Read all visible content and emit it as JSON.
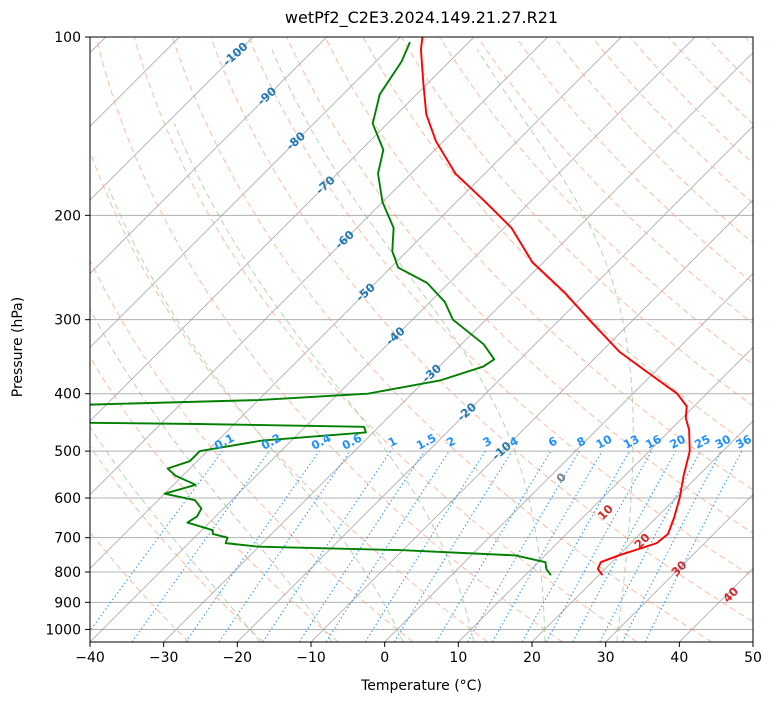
{
  "chart_data": {
    "type": "skew-t",
    "title": "wetPf2_C2E3.2024.149.21.27.R21",
    "xlabel": "Temperature (°C)",
    "ylabel": "Pressure (hPa)",
    "xlim": [
      -40,
      50
    ],
    "ylim": [
      1050,
      100
    ],
    "skew_c_per_decade": 45,
    "x_ticks": [
      -40,
      -30,
      -20,
      -10,
      0,
      10,
      20,
      30,
      40,
      50
    ],
    "x_tick_labels": [
      "−40",
      "−30",
      "−20",
      "−10",
      "0",
      "10",
      "20",
      "30",
      "40",
      "50"
    ],
    "y_ticks": [
      1000,
      900,
      800,
      700,
      600,
      500,
      400,
      300,
      200,
      100
    ],
    "y_tick_labels": [
      "1000",
      "900",
      "800",
      "700",
      "600",
      "500",
      "400",
      "300",
      "200",
      "100"
    ],
    "grid": true,
    "colors": {
      "temperature": "#ff0000",
      "dewpoint": "#008000",
      "isotherm": "#a0a0a0",
      "grid": "#b0b0b0",
      "dry_adiabat": "#ffa07a",
      "moist_adiabat": "#8fbc8f",
      "mixing_ratio": "#1e90ff",
      "dry_adiabat_label": "#1f77b4",
      "moist_adiabat_label": "#d62728",
      "zero_label": "#808080"
    },
    "series": [
      {
        "name": "Temperature",
        "unit": "°C",
        "points": [
          [
            810,
            20.5
          ],
          [
            790,
            19.0
          ],
          [
            770,
            18.5
          ],
          [
            750,
            20.0
          ],
          [
            730,
            22.0
          ],
          [
            715,
            23.5
          ],
          [
            690,
            23.8
          ],
          [
            650,
            22.5
          ],
          [
            600,
            20.5
          ],
          [
            550,
            18.0
          ],
          [
            500,
            15.5
          ],
          [
            460,
            12.5
          ],
          [
            440,
            10.5
          ],
          [
            420,
            9.0
          ],
          [
            400,
            6.0
          ],
          [
            370,
            -0.5
          ],
          [
            340,
            -7.5
          ],
          [
            300,
            -16.0
          ],
          [
            270,
            -23.0
          ],
          [
            240,
            -31.5
          ],
          [
            210,
            -39.0
          ],
          [
            190,
            -46.0
          ],
          [
            170,
            -54.0
          ],
          [
            150,
            -61.0
          ],
          [
            135,
            -66.0
          ],
          [
            120,
            -70.5
          ],
          [
            105,
            -75.5
          ],
          [
            100,
            -77.0
          ]
        ]
      },
      {
        "name": "Dewpoint",
        "unit": "°C",
        "points": [
          [
            810,
            13.5
          ],
          [
            790,
            12.0
          ],
          [
            770,
            11.0
          ],
          [
            750,
            6.0
          ],
          [
            735,
            -10.0
          ],
          [
            725,
            -30.0
          ],
          [
            715,
            -35.0
          ],
          [
            700,
            -35.5
          ],
          [
            690,
            -38.0
          ],
          [
            680,
            -38.5
          ],
          [
            660,
            -43.0
          ],
          [
            645,
            -42.5
          ],
          [
            625,
            -43.0
          ],
          [
            605,
            -45.0
          ],
          [
            590,
            -50.0
          ],
          [
            570,
            -47.0
          ],
          [
            550,
            -51.0
          ],
          [
            535,
            -53.0
          ],
          [
            520,
            -51.0
          ],
          [
            500,
            -51.0
          ],
          [
            480,
            -44.0
          ],
          [
            465,
            -31.0
          ],
          [
            455,
            -32.0
          ],
          [
            450,
            -55.0
          ],
          [
            445,
            -90.0
          ],
          [
            420,
            -80.0
          ],
          [
            410,
            -50.0
          ],
          [
            400,
            -36.0
          ],
          [
            380,
            -28.0
          ],
          [
            360,
            -24.0
          ],
          [
            350,
            -23.5
          ],
          [
            330,
            -27.0
          ],
          [
            300,
            -34.5
          ],
          [
            280,
            -38.0
          ],
          [
            260,
            -43.0
          ],
          [
            245,
            -49.0
          ],
          [
            230,
            -52.0
          ],
          [
            210,
            -55.0
          ],
          [
            190,
            -60.0
          ],
          [
            170,
            -64.5
          ],
          [
            155,
            -67.0
          ],
          [
            140,
            -72.0
          ],
          [
            125,
            -75.0
          ],
          [
            110,
            -76.5
          ],
          [
            102,
            -78.0
          ]
        ]
      }
    ],
    "dry_adiabats_c": [
      -30,
      -20,
      -10,
      0,
      10,
      20,
      30,
      40,
      50,
      60,
      70,
      80,
      90,
      100,
      110,
      120,
      130,
      140,
      150,
      160,
      170,
      180,
      190
    ],
    "dry_adiabat_labels": [
      {
        "text": "-100",
        "value": -100
      },
      {
        "text": "-90",
        "value": -90
      },
      {
        "text": "-80",
        "value": -80
      },
      {
        "text": "-70",
        "value": -70
      },
      {
        "text": "-60",
        "value": -60
      },
      {
        "text": "-50",
        "value": -50
      },
      {
        "text": "-40",
        "value": -40
      },
      {
        "text": "-30",
        "value": -30
      },
      {
        "text": "-20",
        "value": -20
      },
      {
        "text": "-10",
        "value": -10
      }
    ],
    "moist_adiabats_c": [
      -20,
      -10,
      0,
      10,
      20,
      30
    ],
    "moist_adiabat_labels": [
      {
        "text": "0",
        "value": 0
      },
      {
        "text": "10",
        "value": 10
      },
      {
        "text": "20",
        "value": 20
      },
      {
        "text": "30",
        "value": 30
      },
      {
        "text": "40",
        "value": 40
      }
    ],
    "mixing_ratios_gkg": [
      0.1,
      0.2,
      0.4,
      0.6,
      1,
      1.5,
      2,
      3,
      4,
      6,
      8,
      10,
      13,
      16,
      20,
      25,
      30,
      36
    ],
    "mixing_ratio_labels": [
      "0.1",
      "0.2",
      "0.4",
      "0.6",
      "1",
      "1.5",
      "2",
      "3",
      "4",
      "6",
      "8",
      "10",
      "13",
      "16",
      "20",
      "25",
      "30",
      "36"
    ]
  }
}
